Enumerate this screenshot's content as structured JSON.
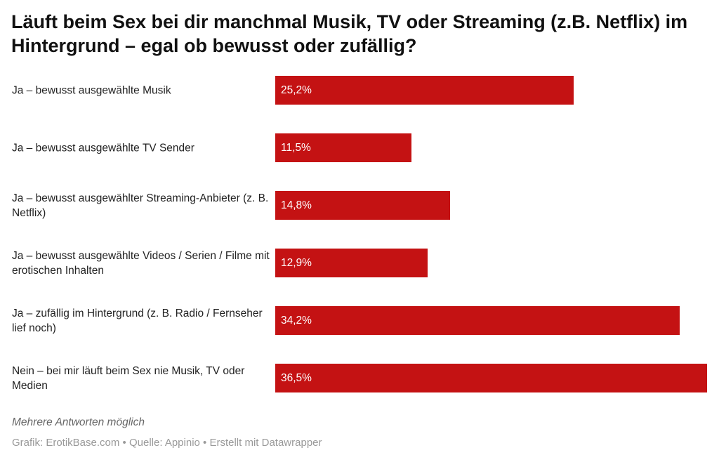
{
  "chart_data": {
    "type": "bar",
    "orientation": "horizontal",
    "title": "Läuft beim Sex bei dir manchmal Musik, TV oder Streaming (z.B. Netflix) im Hintergrund – egal ob bewusst oder zufällig?",
    "categories": [
      "Ja – bewusst ausgewählte Musik",
      "Ja – bewusst ausgewählte TV Sender",
      "Ja – bewusst ausgewählter Streaming-Anbieter (z. B. Netflix)",
      "Ja – bewusst ausgewählte Videos / Serien / Filme mit erotischen Inhalten",
      "Ja – zufällig im Hintergrund (z. B. Radio / Fernseher lief noch)",
      "Nein – bei mir läuft beim Sex nie Musik, TV oder Medien"
    ],
    "values": [
      25.2,
      11.5,
      14.8,
      12.9,
      34.2,
      36.5
    ],
    "labels": [
      "25,2%",
      "11,5%",
      "14,8%",
      "12,9%",
      "34,2%",
      "36,5%"
    ],
    "xlim": [
      0,
      36.5
    ],
    "color": "#c41213"
  },
  "note": "Mehrere Antworten möglich",
  "source": "Grafik: ErotikBase.com • Quelle: Appinio • Erstellt mit Datawrapper"
}
